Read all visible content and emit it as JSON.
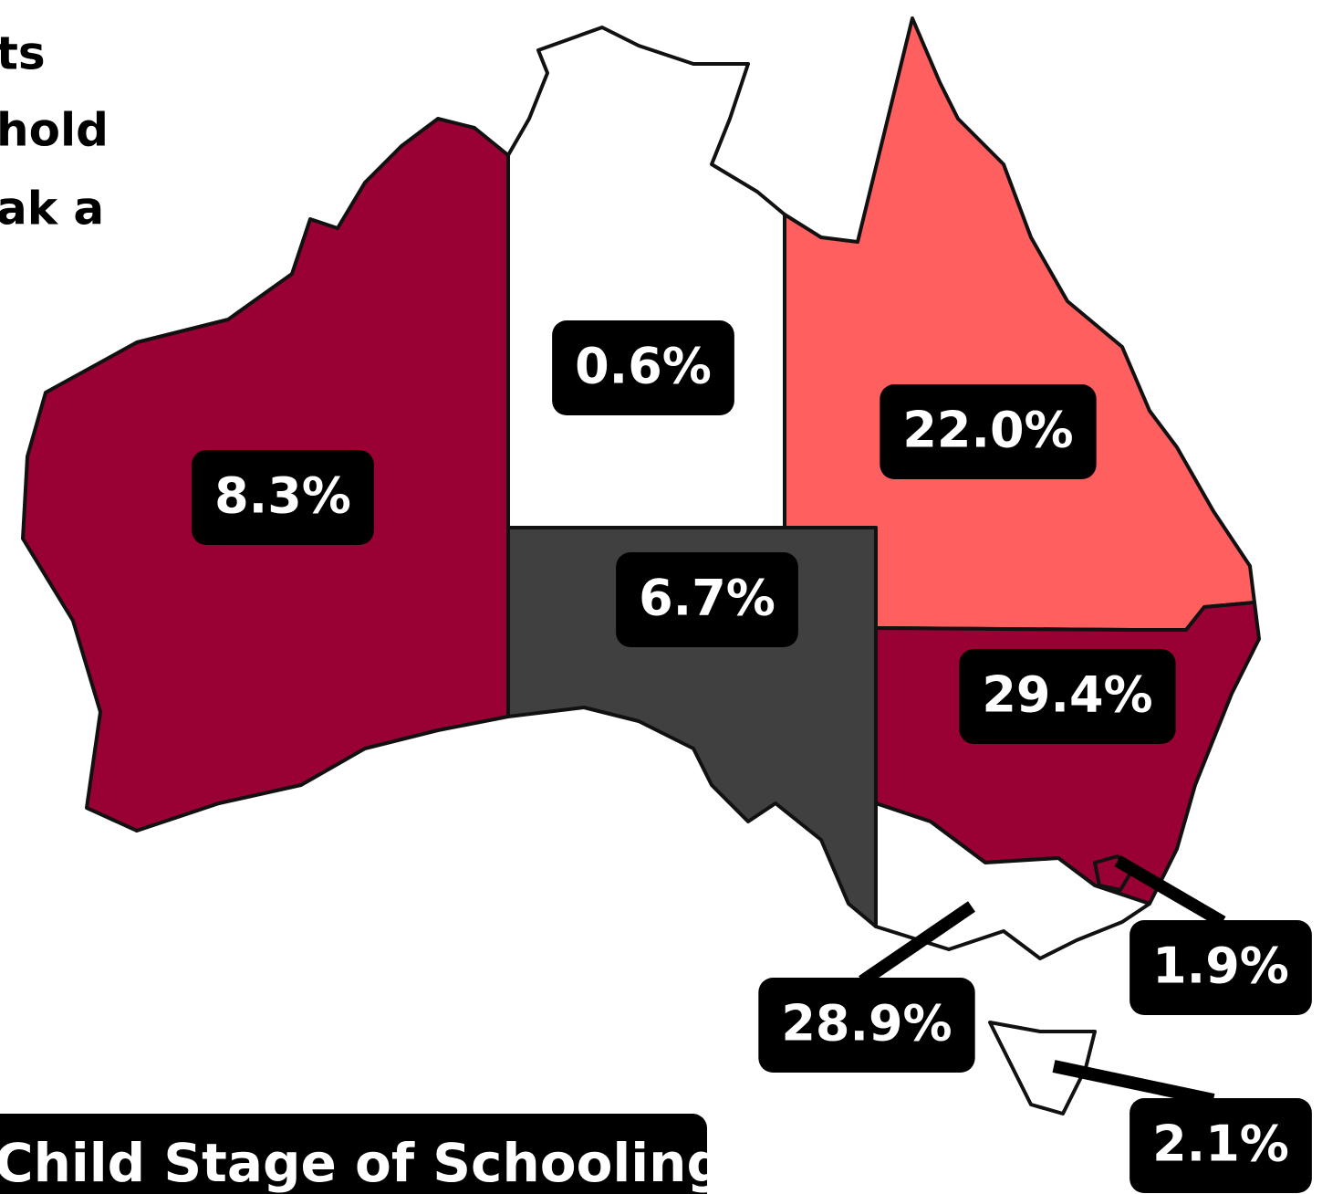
{
  "chart_data": {
    "type": "choropleth",
    "title_lines": [
      "ts",
      "hold",
      "ak a"
    ],
    "caption": "Child Stage of Schooling",
    "values": [
      8.3,
      0.6,
      22,
      6.7,
      29.4,
      28.9,
      1.9,
      2.1
    ],
    "value_labels": [
      "8.3%",
      "0.6%",
      "22.0%",
      "6.7%",
      "29.4%",
      "28.9%",
      "1.9%",
      "2.1%"
    ],
    "colors": [
      "#990033",
      "#ffffff",
      "#ff5f5f",
      "#404040",
      "#990033",
      "#ffffff",
      "#990033",
      "#ffffff"
    ]
  }
}
